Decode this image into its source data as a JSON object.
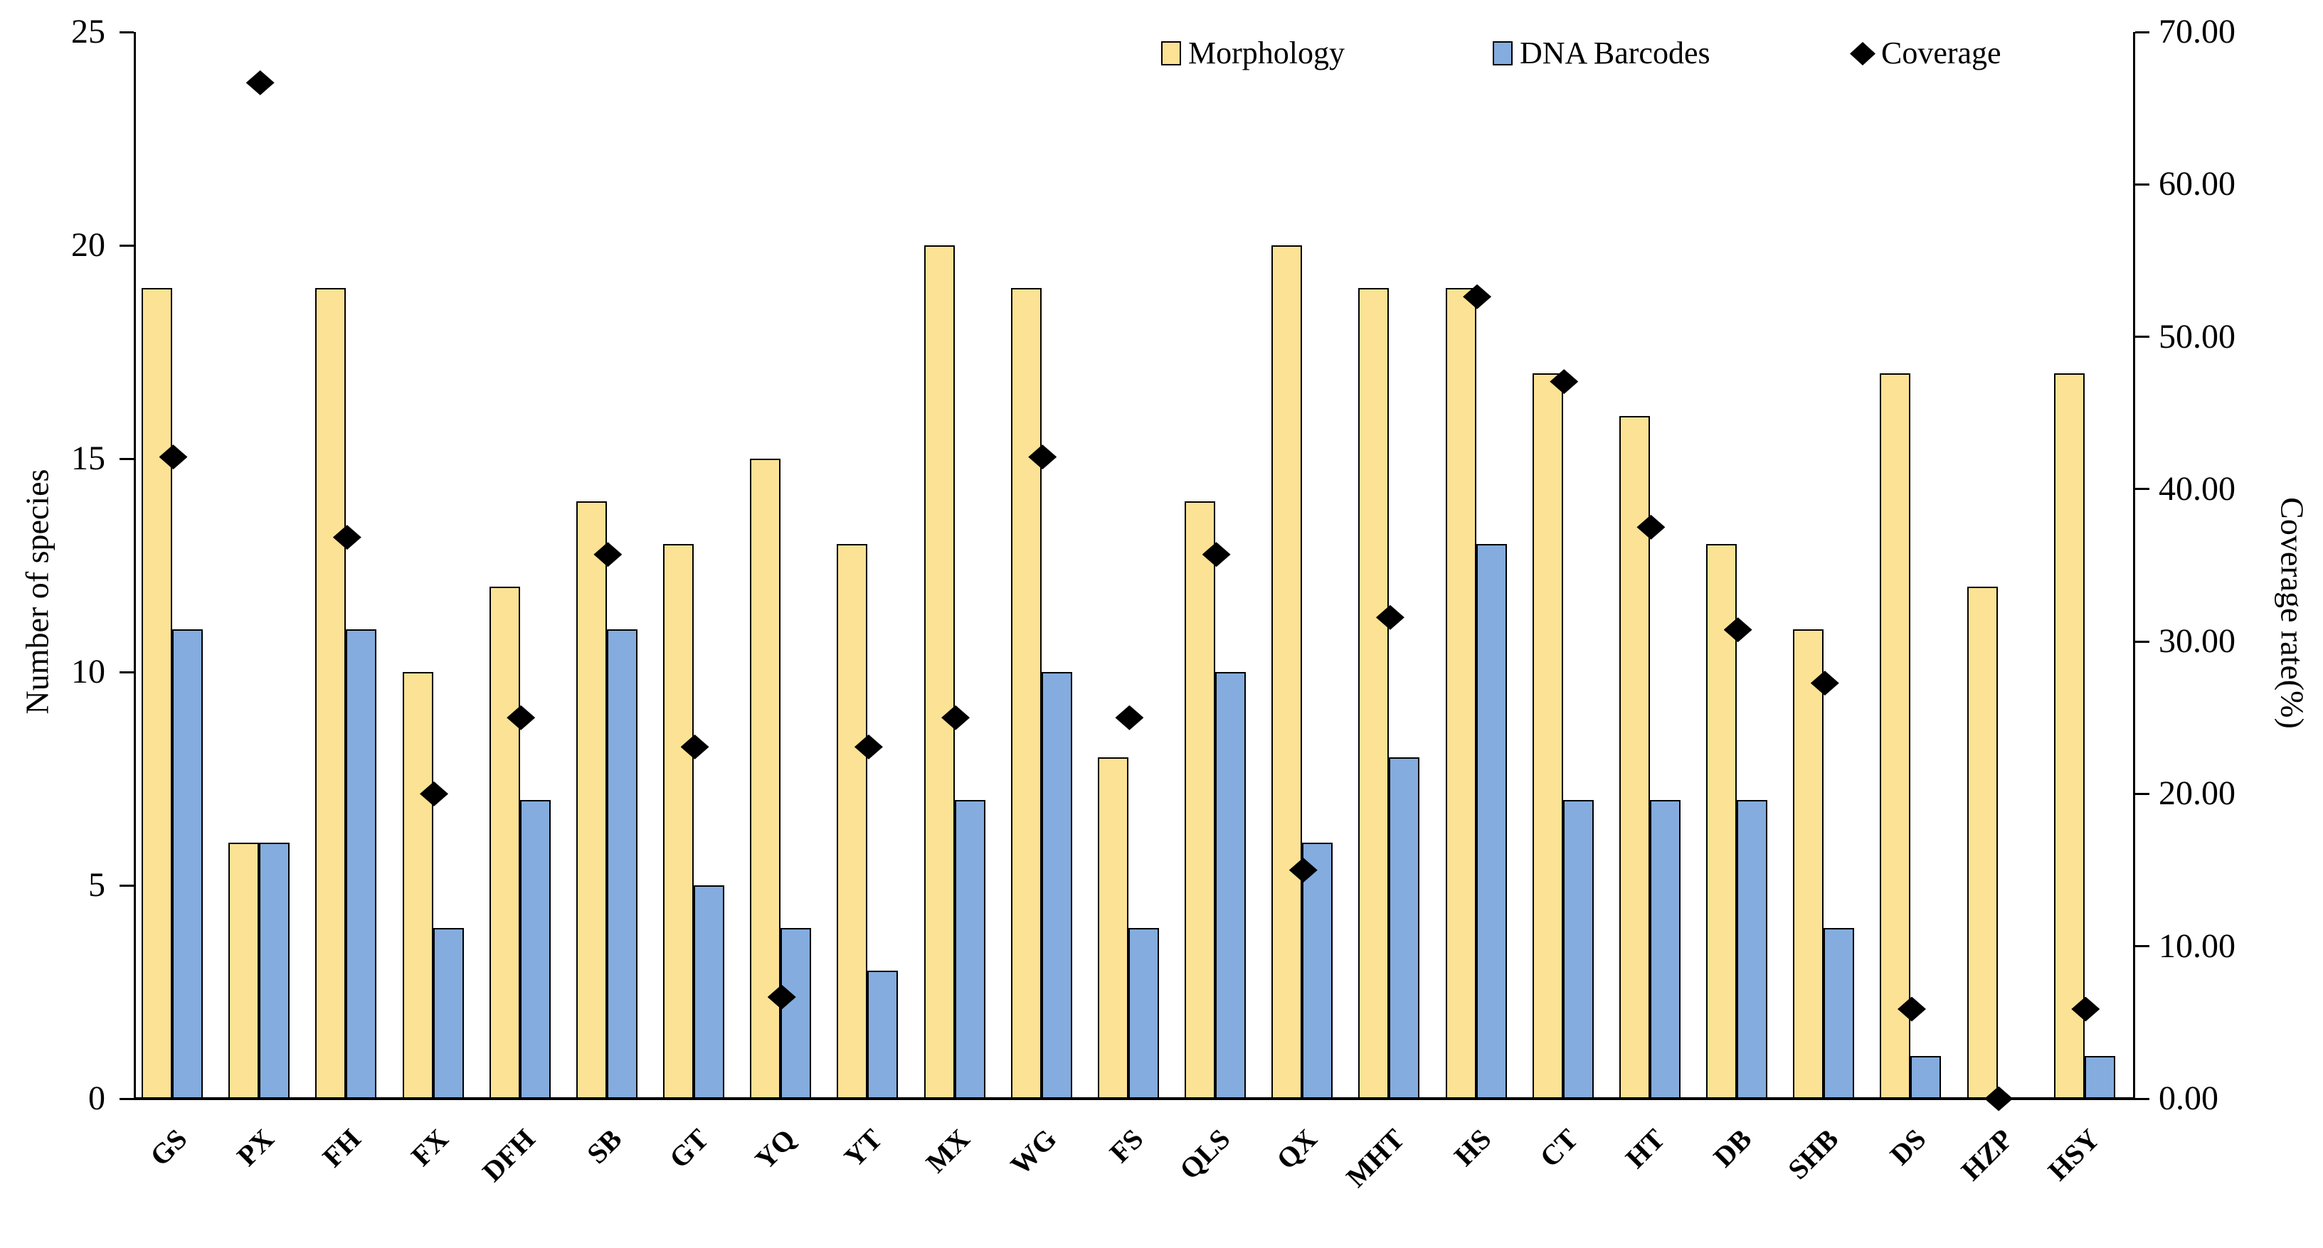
{
  "figure": {
    "background": "#ffffff",
    "axis_color": "#000000"
  },
  "chart_data": {
    "type": "bar",
    "subtype": "grouped-bars-with-scatter-diamond-secondary-axis",
    "categories": [
      "GS",
      "PX",
      "FH",
      "FX",
      "DFH",
      "SB",
      "GT",
      "YQ",
      "YT",
      "MX",
      "WG",
      "FS",
      "QLS",
      "QX",
      "MHT",
      "HS",
      "CT",
      "HT",
      "DB",
      "SHB",
      "DS",
      "HZP",
      "HSY"
    ],
    "series": [
      {
        "name": "Morphology",
        "type": "bar",
        "axis": "left",
        "color": "#FCE294",
        "border_color": "#000000",
        "values": [
          19,
          6,
          19,
          10,
          12,
          14,
          13,
          15,
          13,
          20,
          19,
          8,
          14,
          20,
          19,
          19,
          17,
          16,
          13,
          11,
          17,
          12,
          17
        ]
      },
      {
        "name": "DNA Barcodes",
        "type": "bar",
        "axis": "left",
        "color": "#84ACDE",
        "border_color": "#000000",
        "values": [
          11,
          6,
          11,
          4,
          7,
          11,
          5,
          4,
          3,
          7,
          10,
          4,
          10,
          6,
          8,
          13,
          7,
          7,
          7,
          4,
          1,
          0,
          1
        ]
      },
      {
        "name": "Coverage",
        "type": "scatter",
        "marker": "diamond",
        "axis": "right",
        "color": "#000000",
        "values": [
          42.11,
          66.67,
          36.84,
          20.0,
          25.0,
          35.71,
          23.08,
          6.67,
          23.08,
          25.0,
          42.11,
          25.0,
          35.71,
          15.0,
          31.58,
          52.63,
          47.06,
          37.5,
          30.77,
          27.27,
          5.88,
          0.0,
          5.88
        ]
      }
    ],
    "left_axis": {
      "label": "Number of species",
      "min": 0,
      "max": 25,
      "ticks": [
        "0",
        "5",
        "10",
        "15",
        "20",
        "25"
      ]
    },
    "right_axis": {
      "label": "Coverage rate(%)",
      "min": 0,
      "max": 70,
      "ticks": [
        "0.00",
        "10.00",
        "20.00",
        "30.00",
        "40.00",
        "50.00",
        "60.00",
        "70.00"
      ]
    },
    "grid": "off",
    "legend_position": "top-right-inside"
  },
  "legend": {
    "morphology_label": "Morphology",
    "dna_label": "DNA Barcodes",
    "coverage_label": "Coverage"
  }
}
